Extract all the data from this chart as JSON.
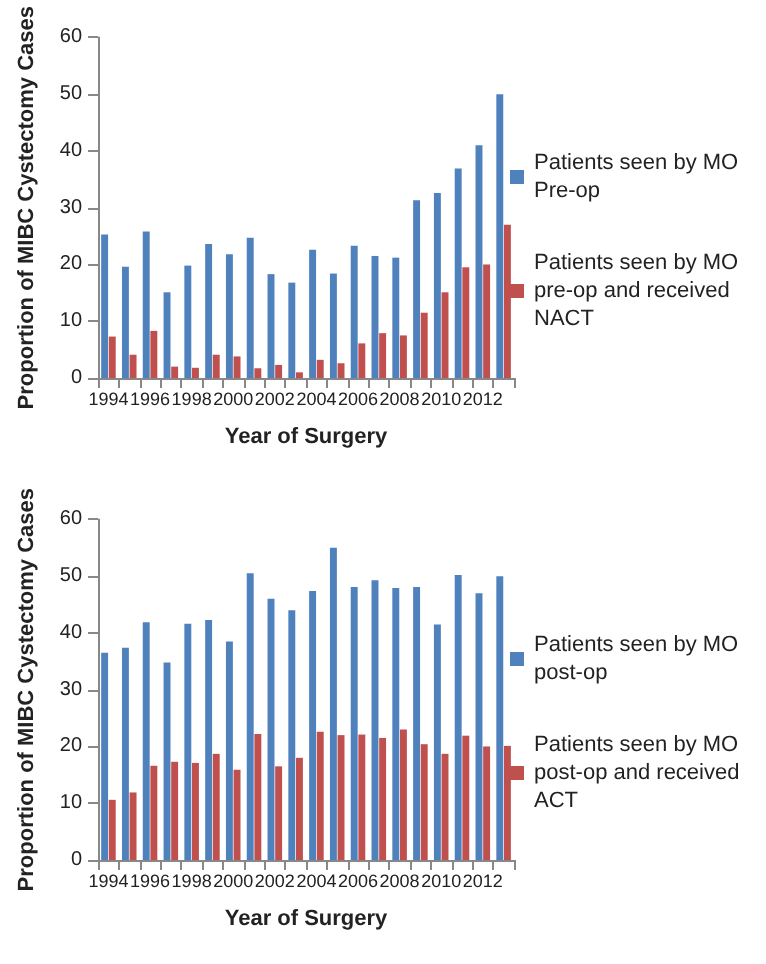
{
  "chart_data": [
    {
      "type": "bar",
      "xlabel": "Year of Surgery",
      "ylabel": "Proportion of MIBC Cystectomy Cases",
      "categories": [
        "1994",
        null,
        "1996",
        null,
        "1998",
        null,
        "2000",
        null,
        "2002",
        null,
        "2004",
        null,
        "2006",
        null,
        "2008",
        null,
        "2010",
        null,
        "2012",
        null
      ],
      "ylim": [
        0,
        60
      ],
      "yticks": [
        0,
        10,
        20,
        30,
        40,
        50,
        60
      ],
      "grid": false,
      "legend": "right",
      "series": [
        {
          "name": "Patients seen by MO Pre-op",
          "color": "#4f81bd",
          "values": [
            25.3,
            19.6,
            25.8,
            15.1,
            19.8,
            23.6,
            21.8,
            24.7,
            18.3,
            16.8,
            22.6,
            18.4,
            23.3,
            21.5,
            21.2,
            31.3,
            32.6,
            36.9,
            41,
            50
          ]
        },
        {
          "name": "Patients seen by MO pre-op and received NACT",
          "color": "#c0504d",
          "values": [
            7.3,
            4.1,
            8.3,
            2.0,
            1.8,
            4.1,
            3.8,
            1.7,
            2.3,
            1.0,
            3.2,
            2.6,
            6.1,
            7.9,
            7.5,
            11.5,
            15.1,
            19.5,
            20,
            27
          ]
        }
      ]
    },
    {
      "type": "bar",
      "xlabel": "Year of Surgery",
      "ylabel": "Proportion of MIBC Cystectomy Cases",
      "categories": [
        "1994",
        null,
        "1996",
        null,
        "1998",
        null,
        "2000",
        null,
        "2002",
        null,
        "2004",
        null,
        "2006",
        null,
        "2008",
        null,
        "2010",
        null,
        "2012",
        null
      ],
      "ylim": [
        0,
        60
      ],
      "yticks": [
        0,
        10,
        20,
        30,
        40,
        50,
        60
      ],
      "grid": false,
      "legend": "right",
      "series": [
        {
          "name": "Patients seen by MO post-op",
          "color": "#4f81bd",
          "values": [
            36.5,
            37.4,
            41.9,
            34.8,
            41.6,
            42.3,
            38.5,
            50.5,
            46,
            44,
            47.4,
            55,
            48.1,
            49.3,
            47.9,
            48.1,
            41.5,
            50.2,
            47,
            50
          ]
        },
        {
          "name": "Patients seen by MO post-op and received ACT",
          "color": "#c0504d",
          "values": [
            10.6,
            11.9,
            16.6,
            17.3,
            17.1,
            18.7,
            15.9,
            22.2,
            16.5,
            18,
            22.6,
            22,
            22.1,
            21.5,
            23,
            20.4,
            18.7,
            21.9,
            20,
            20.1
          ]
        }
      ]
    }
  ]
}
